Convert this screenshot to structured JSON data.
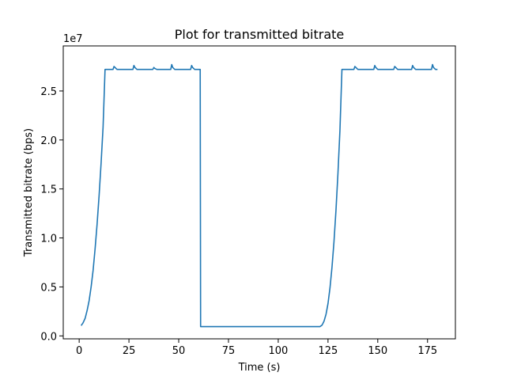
{
  "chart_data": {
    "type": "line",
    "title": "Plot for transmitted bitrate",
    "xlabel": "Time (s)",
    "ylabel": "Transmitted bitrate (bps)",
    "y_offset_label": "1e7",
    "xlim": [
      -8,
      189
    ],
    "ylim": [
      -0.3,
      29.6
    ],
    "y_scale": 10000000,
    "xticks": [
      0,
      25,
      50,
      75,
      100,
      125,
      150,
      175
    ],
    "xtick_labels": [
      "0",
      "25",
      "50",
      "75",
      "100",
      "125",
      "150",
      "175"
    ],
    "yticks": [
      0.0,
      0.5,
      1.0,
      1.5,
      2.0,
      2.5
    ],
    "ytick_labels": [
      "0.0",
      "0.5",
      "1.0",
      "1.5",
      "2.0",
      "2.5"
    ],
    "series": [
      {
        "name": "transmitted bitrate",
        "color": "#1f77b4",
        "x": [
          1,
          2,
          3,
          4,
          5,
          6,
          7,
          8,
          9,
          10,
          11,
          12,
          13,
          17,
          17.5,
          18,
          18.5,
          19,
          27,
          27.5,
          28,
          28.5,
          29,
          37,
          37.5,
          38,
          38.5,
          39,
          46,
          46.5,
          47,
          47.5,
          48,
          56,
          56.5,
          57,
          57.5,
          58,
          60.5,
          60.8,
          61,
          84,
          104,
          120,
          121,
          122,
          123,
          124,
          125,
          126,
          127,
          128,
          129,
          130,
          131,
          132,
          133,
          138,
          138.5,
          139,
          139.5,
          140,
          148,
          148.5,
          149,
          149.5,
          150,
          158,
          158.5,
          159,
          159.5,
          160,
          167,
          167.5,
          168,
          168.5,
          169,
          177,
          177.5,
          178,
          178.5,
          179,
          180
        ],
        "y": [
          1.05,
          1.35,
          1.8,
          2.6,
          3.6,
          5.0,
          6.7,
          8.9,
          11.4,
          14.3,
          17.6,
          21.3,
          27.2,
          27.2,
          27.5,
          27.4,
          27.3,
          27.2,
          27.2,
          27.6,
          27.4,
          27.3,
          27.2,
          27.2,
          27.4,
          27.3,
          27.25,
          27.2,
          27.2,
          27.7,
          27.4,
          27.3,
          27.2,
          27.2,
          27.6,
          27.4,
          27.3,
          27.2,
          27.2,
          27.2,
          0.95,
          0.95,
          0.95,
          0.95,
          0.95,
          1.1,
          1.5,
          2.2,
          3.3,
          4.9,
          7.0,
          9.6,
          12.8,
          16.6,
          21.0,
          27.2,
          27.2,
          27.2,
          27.5,
          27.4,
          27.3,
          27.2,
          27.2,
          27.6,
          27.4,
          27.3,
          27.2,
          27.2,
          27.5,
          27.4,
          27.3,
          27.2,
          27.2,
          27.6,
          27.4,
          27.3,
          27.2,
          27.2,
          27.7,
          27.4,
          27.3,
          27.2,
          27.2
        ]
      }
    ]
  }
}
